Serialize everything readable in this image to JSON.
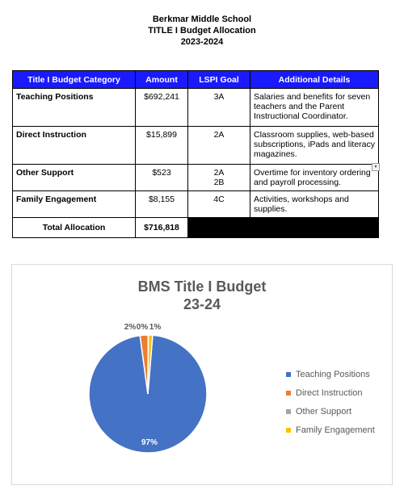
{
  "header": {
    "school": "Berkmar Middle School",
    "title": "TITLE I Budget Allocation",
    "year": "2023-2024"
  },
  "table": {
    "headers": [
      "Title I Budget Category",
      "Amount",
      "LSPI Goal",
      "Additional Details"
    ],
    "rows": [
      {
        "category": "Teaching Positions",
        "amount": "$692,241",
        "goal": "3A",
        "goal2": "",
        "details": "Salaries and benefits for seven teachers and the Parent Instructional Coordinator."
      },
      {
        "category": "Direct Instruction",
        "amount": "$15,899",
        "goal": "2A",
        "goal2": "",
        "details": "Classroom supplies, web-based subscriptions, iPads and literacy magazines."
      },
      {
        "category": "Other Support",
        "amount": "$523",
        "goal": "2A",
        "goal2": "2B",
        "details": "Overtime for inventory ordering and payroll processing."
      },
      {
        "category": "Family Engagement",
        "amount": "$8,155",
        "goal": "4C",
        "goal2": "",
        "details": "Activities, workshops and supplies."
      }
    ],
    "total_label": "Total Allocation",
    "total_amount": "$716,818",
    "dropdown_icon": "chevron-down-icon"
  },
  "chart_data": {
    "type": "pie",
    "title": "BMS Title I Budget",
    "subtitle": "23-24",
    "categories": [
      "Teaching Positions",
      "Direct Instruction",
      "Other Support",
      "Family Engagement"
    ],
    "values": [
      692241,
      15899,
      523,
      8155
    ],
    "labels": [
      "97%",
      "2%",
      "0%",
      "1%"
    ],
    "colors": [
      "#4472c4",
      "#ed7d31",
      "#a5a5a5",
      "#ffc000"
    ],
    "legend_position": "right"
  }
}
